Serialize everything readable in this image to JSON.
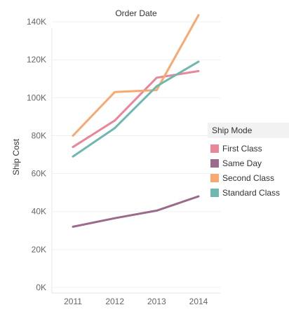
{
  "chart_data": {
    "type": "line",
    "title": "Order Date",
    "xlabel": "",
    "ylabel": "Ship Cost",
    "categories": [
      "2011",
      "2012",
      "2013",
      "2014"
    ],
    "y_ticks": [
      "0K",
      "20K",
      "40K",
      "60K",
      "80K",
      "100K",
      "120K",
      "140K"
    ],
    "ylim": [
      0,
      150000
    ],
    "grid": true,
    "legend_title": "Ship Mode",
    "legend_position": "right",
    "series": [
      {
        "name": "First Class",
        "color": "#e8869a",
        "values": [
          74000,
          88000,
          110500,
          114000
        ]
      },
      {
        "name": "Same Day",
        "color": "#9b6a8c",
        "values": [
          32000,
          36500,
          40500,
          48000
        ]
      },
      {
        "name": "Second Class",
        "color": "#f7a972",
        "values": [
          80000,
          103000,
          104000,
          143500
        ]
      },
      {
        "name": "Standard Class",
        "color": "#6fb8b0",
        "values": [
          69000,
          84000,
          106000,
          119000
        ]
      }
    ]
  }
}
